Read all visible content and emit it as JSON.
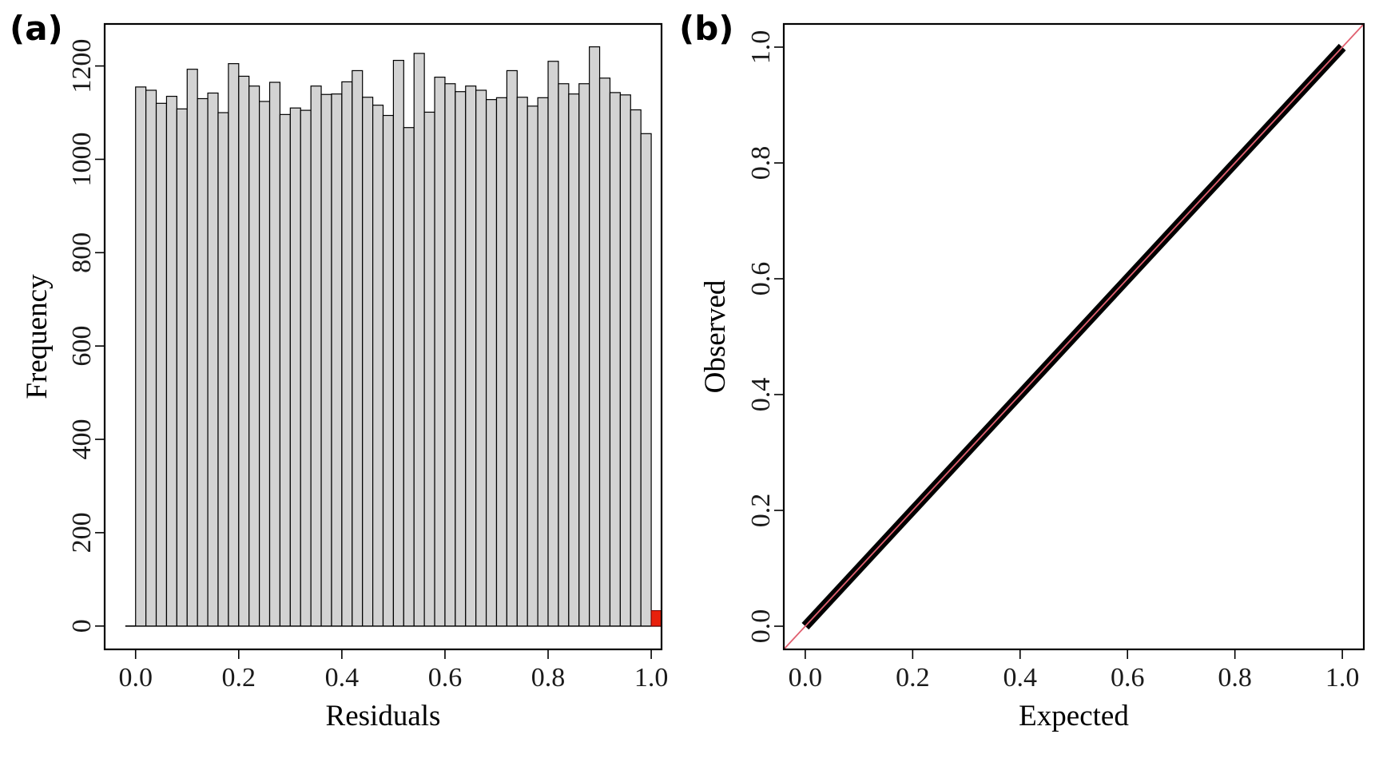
{
  "panels": {
    "a": {
      "label": "(a)"
    },
    "b": {
      "label": "(b)"
    }
  },
  "colors": {
    "bar_fill": "#d3d3d3",
    "bar_highlight": "#e8200c",
    "qq_points": "#000000",
    "reference_line": "#e06070"
  },
  "chart_data": [
    {
      "type": "bar",
      "panel": "(a)",
      "xlabel": "Residuals",
      "ylabel": "Frequency",
      "xlim": [
        -0.06,
        1.02
      ],
      "ylim": [
        -50,
        1290
      ],
      "xticks": [
        "0.0",
        "0.2",
        "0.4",
        "0.6",
        "0.8",
        "1.0"
      ],
      "xtick_values": [
        0.0,
        0.2,
        0.4,
        0.6,
        0.8,
        1.0
      ],
      "yticks": [
        "0",
        "200",
        "400",
        "600",
        "800",
        "1000",
        "1200"
      ],
      "ytick_values": [
        0,
        200,
        400,
        600,
        800,
        1000,
        1200
      ],
      "bin_width": 0.02,
      "bins_start": [
        0.0,
        0.02,
        0.04,
        0.06,
        0.08,
        0.1,
        0.12,
        0.14,
        0.16,
        0.18,
        0.2,
        0.22,
        0.24,
        0.26,
        0.28,
        0.3,
        0.32,
        0.34,
        0.36,
        0.38,
        0.4,
        0.42,
        0.44,
        0.46,
        0.48,
        0.5,
        0.52,
        0.54,
        0.56,
        0.58,
        0.6,
        0.62,
        0.64,
        0.66,
        0.68,
        0.7,
        0.72,
        0.74,
        0.76,
        0.78,
        0.8,
        0.82,
        0.84,
        0.86,
        0.88,
        0.9,
        0.92,
        0.94,
        0.96,
        0.98
      ],
      "values": [
        1155,
        1148,
        1120,
        1135,
        1108,
        1193,
        1130,
        1142,
        1100,
        1205,
        1178,
        1157,
        1124,
        1165,
        1096,
        1110,
        1105,
        1157,
        1139,
        1140,
        1166,
        1190,
        1133,
        1116,
        1094,
        1212,
        1068,
        1227,
        1101,
        1176,
        1162,
        1145,
        1157,
        1148,
        1128,
        1132,
        1190,
        1133,
        1114,
        1132,
        1210,
        1162,
        1140,
        1162,
        1241,
        1174,
        1143,
        1138,
        1106,
        1055
      ],
      "highlight_bar": {
        "x": 1.0,
        "width": 0.02,
        "value": 33
      },
      "baseline": {
        "from": -0.02,
        "to": 1.02
      },
      "grid": false
    },
    {
      "type": "scatter",
      "panel": "(b)",
      "xlabel": "Expected",
      "ylabel": "Observed",
      "xlim": [
        -0.04,
        1.04
      ],
      "ylim": [
        -0.04,
        1.04
      ],
      "xticks": [
        "0.0",
        "0.2",
        "0.4",
        "0.6",
        "0.8",
        "1.0"
      ],
      "xtick_values": [
        0.0,
        0.2,
        0.4,
        0.6,
        0.8,
        1.0
      ],
      "yticks": [
        "0.0",
        "0.2",
        "0.4",
        "0.6",
        "0.8",
        "1.0"
      ],
      "ytick_values": [
        0.0,
        0.2,
        0.4,
        0.6,
        0.8,
        1.0
      ],
      "points": {
        "x_range": [
          0.0,
          1.0
        ],
        "y_range": [
          0.0,
          1.0
        ]
      },
      "reference_line": {
        "slope": 1,
        "intercept": 0
      },
      "grid": false
    }
  ]
}
